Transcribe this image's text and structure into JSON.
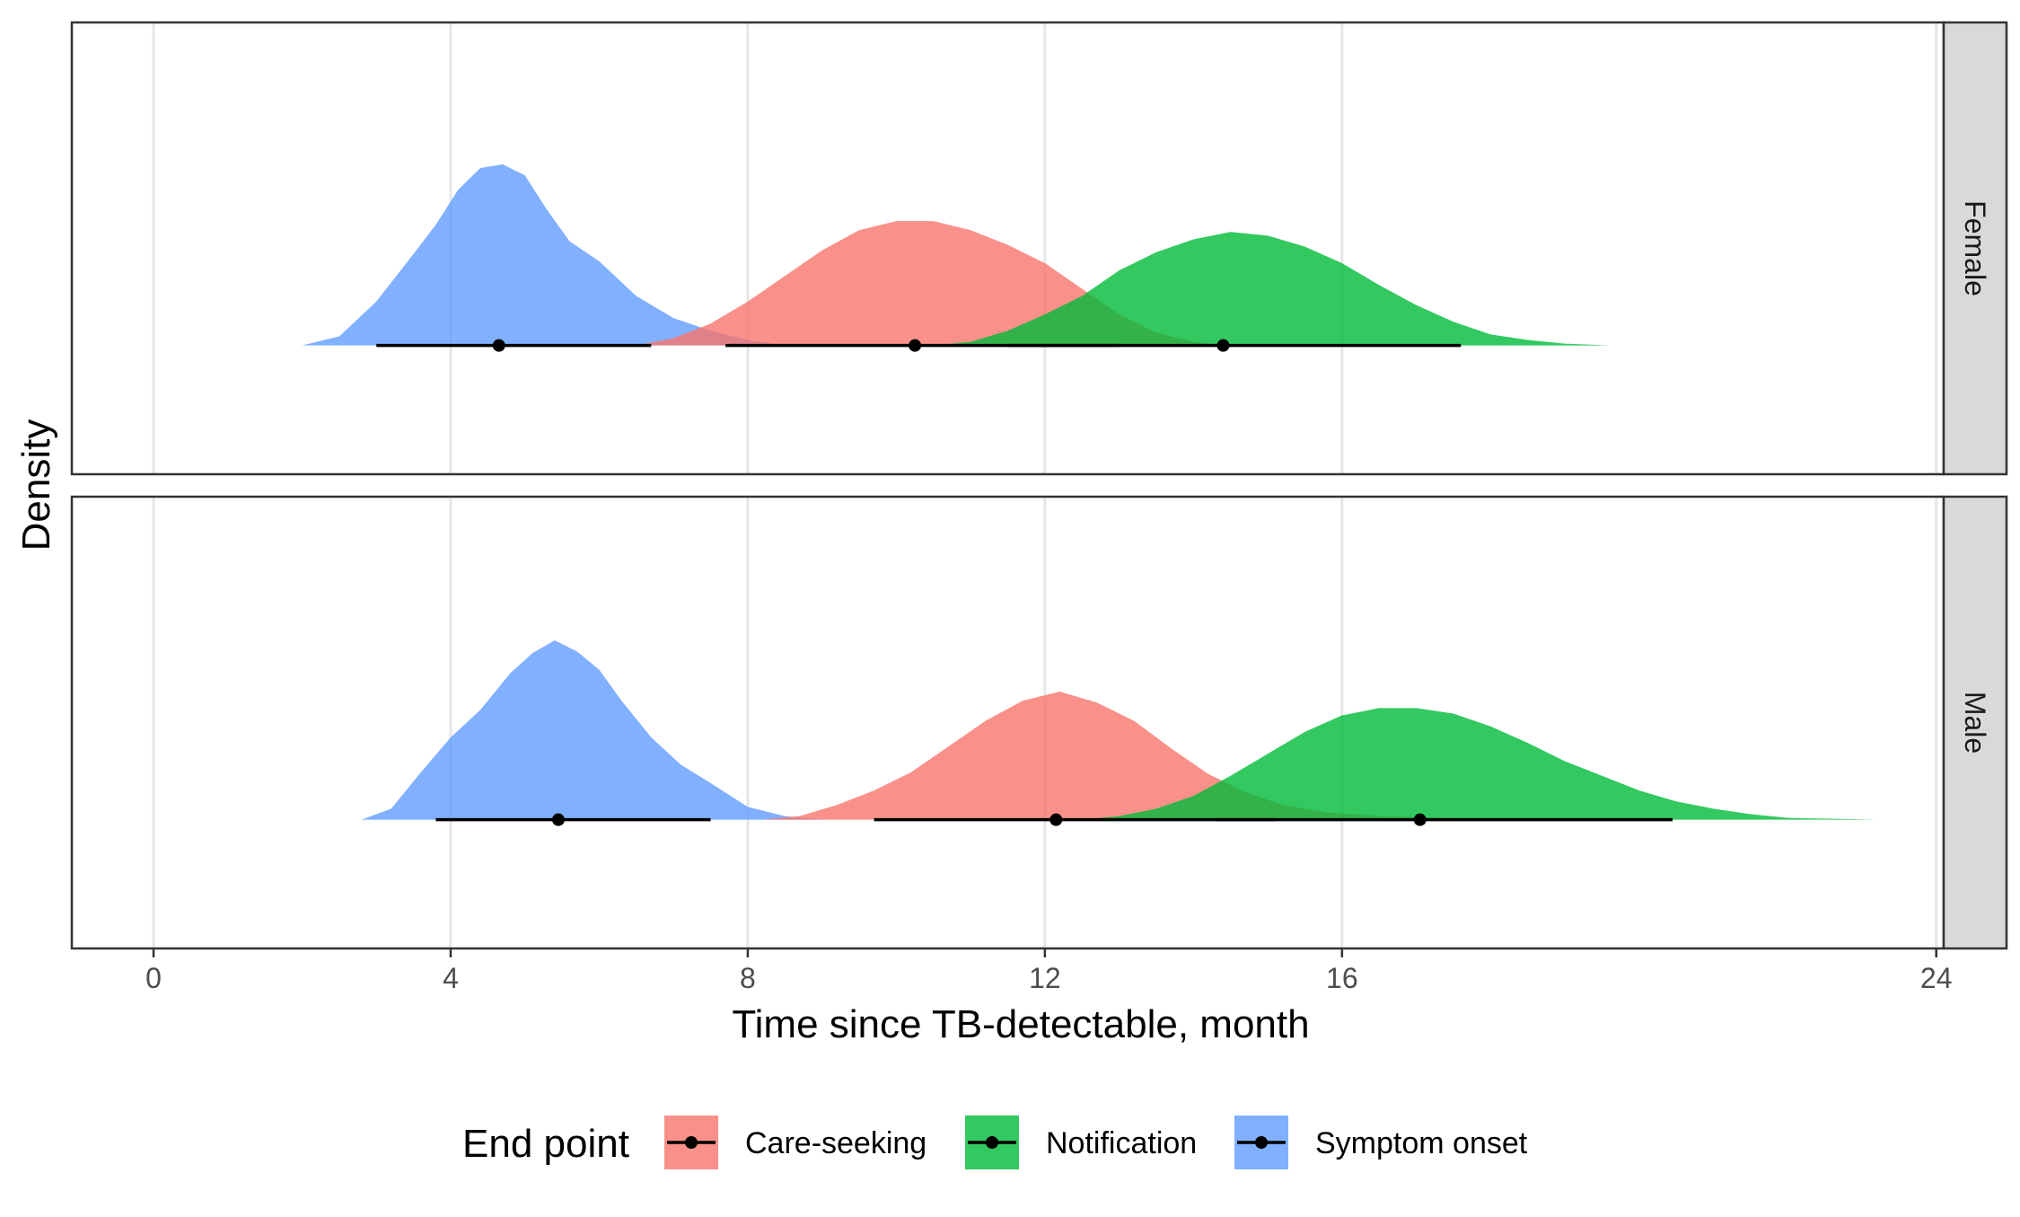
{
  "chart_data": {
    "type": "area",
    "title": "",
    "xlabel": "Time since TB-detectable, month",
    "ylabel": "Density",
    "xlim": [
      -1.1,
      24.1
    ],
    "xticks": [
      0,
      4,
      8,
      12,
      16,
      24
    ],
    "grid": true,
    "legend": {
      "title": "End point",
      "placement": "bottom",
      "entries": [
        {
          "name": "Care-seeking",
          "color": "#F8766D"
        },
        {
          "name": "Notification",
          "color": "#00BA38"
        },
        {
          "name": "Symptom onset",
          "color": "#619CFF"
        }
      ]
    },
    "facets": [
      {
        "label": "Female",
        "series": [
          {
            "name": "Symptom onset",
            "color": "#619CFF",
            "x": [
              2.0,
              2.5,
              3.0,
              3.5,
              3.8,
              4.1,
              4.4,
              4.7,
              5.0,
              5.3,
              5.6,
              6.0,
              6.5,
              7.0,
              7.5,
              8.0,
              8.5
            ],
            "density": [
              0.0,
              0.05,
              0.24,
              0.5,
              0.66,
              0.85,
              0.97,
              0.99,
              0.93,
              0.74,
              0.57,
              0.46,
              0.27,
              0.15,
              0.08,
              0.03,
              0.0
            ]
          },
          {
            "name": "Care-seeking",
            "color": "#F8766D",
            "x": [
              6.5,
              7.0,
              7.5,
              8.0,
              8.5,
              9.0,
              9.5,
              10.0,
              10.5,
              11.0,
              11.5,
              12.0,
              12.5,
              13.0,
              13.5,
              14.0,
              14.5
            ],
            "density": [
              0.0,
              0.04,
              0.12,
              0.24,
              0.38,
              0.52,
              0.63,
              0.68,
              0.68,
              0.63,
              0.55,
              0.45,
              0.31,
              0.17,
              0.07,
              0.02,
              0.0
            ]
          },
          {
            "name": "Notification",
            "color": "#00BA38",
            "x": [
              10.5,
              11.0,
              11.5,
              12.0,
              12.5,
              13.0,
              13.5,
              14.0,
              14.5,
              15.0,
              15.5,
              16.0,
              16.5,
              17.0,
              17.5,
              18.0,
              18.5,
              19.0,
              19.6
            ],
            "density": [
              0.0,
              0.02,
              0.08,
              0.17,
              0.27,
              0.41,
              0.51,
              0.58,
              0.62,
              0.6,
              0.54,
              0.45,
              0.33,
              0.22,
              0.13,
              0.06,
              0.03,
              0.01,
              0.0
            ]
          }
        ],
        "intervals": [
          {
            "name": "Symptom onset",
            "low": 3.0,
            "median": 4.65,
            "high": 6.7
          },
          {
            "name": "Care-seeking",
            "low": 7.7,
            "median": 10.25,
            "high": 13.0
          },
          {
            "name": "Notification",
            "low": 11.5,
            "median": 14.4,
            "high": 17.6
          }
        ]
      },
      {
        "label": "Male",
        "series": [
          {
            "name": "Symptom onset",
            "color": "#619CFF",
            "x": [
              2.8,
              3.2,
              3.6,
              4.0,
              4.4,
              4.8,
              5.1,
              5.4,
              5.7,
              6.0,
              6.3,
              6.7,
              7.1,
              7.5,
              8.0,
              8.5,
              9.0
            ],
            "density": [
              0.0,
              0.06,
              0.26,
              0.45,
              0.6,
              0.8,
              0.91,
              0.98,
              0.92,
              0.82,
              0.65,
              0.45,
              0.3,
              0.2,
              0.07,
              0.02,
              0.0
            ]
          },
          {
            "name": "Care-seeking",
            "color": "#F8766D",
            "x": [
              8.2,
              8.7,
              9.2,
              9.7,
              10.2,
              10.7,
              11.2,
              11.7,
              12.2,
              12.7,
              13.2,
              13.7,
              14.2,
              14.7,
              15.2,
              15.8,
              16.5,
              17.5,
              18.5
            ],
            "density": [
              0.0,
              0.02,
              0.08,
              0.16,
              0.26,
              0.4,
              0.54,
              0.65,
              0.7,
              0.64,
              0.54,
              0.39,
              0.25,
              0.15,
              0.08,
              0.04,
              0.02,
              0.01,
              0.0
            ]
          },
          {
            "name": "Notification",
            "color": "#00BA38",
            "x": [
              12.5,
              13.0,
              13.5,
              14.0,
              14.5,
              15.0,
              15.5,
              16.0,
              16.5,
              17.0,
              17.5,
              18.0,
              18.5,
              19.0,
              19.5,
              20.0,
              20.5,
              21.0,
              21.5,
              22.0,
              23.2
            ],
            "density": [
              0.0,
              0.02,
              0.06,
              0.13,
              0.24,
              0.36,
              0.48,
              0.57,
              0.61,
              0.61,
              0.58,
              0.51,
              0.42,
              0.32,
              0.24,
              0.16,
              0.1,
              0.06,
              0.03,
              0.01,
              0.0
            ]
          }
        ],
        "intervals": [
          {
            "name": "Symptom onset",
            "low": 3.8,
            "median": 5.45,
            "high": 7.5
          },
          {
            "name": "Care-seeking",
            "low": 9.7,
            "median": 12.15,
            "high": 15.1
          },
          {
            "name": "Notification",
            "low": 14.3,
            "median": 17.05,
            "high": 20.45
          }
        ]
      }
    ]
  }
}
